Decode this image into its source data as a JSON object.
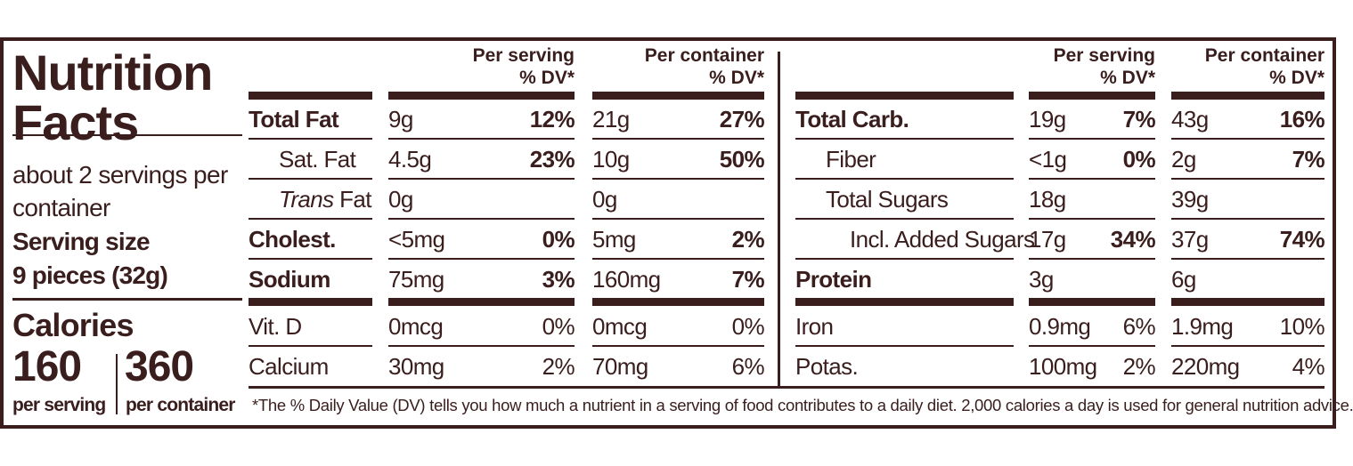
{
  "colors": {
    "ink": "#3a1e1e",
    "background": "#ffffff"
  },
  "left": {
    "title_line1": "Nutrition",
    "title_line2": "Facts",
    "servings_line1": "about 2 servings per",
    "servings_line2": "container",
    "serving_size_label": "Serving size",
    "serving_size_value": "9 pieces (32g)",
    "calories_label": "Calories",
    "calories_per_serving": "160",
    "calories_per_container": "360",
    "per_serving_label": "per serving",
    "per_container_label": "per container"
  },
  "headers": {
    "per_serving": "Per serving",
    "per_container": "Per container",
    "dv": "% DV*"
  },
  "left_table": [
    {
      "label": "Total Fat",
      "bold": true,
      "indent": 0,
      "serving": "9g",
      "serving_dv": "12%",
      "container": "21g",
      "container_dv": "27%",
      "dv_bold": true
    },
    {
      "label": "Sat. Fat",
      "bold": false,
      "indent": 1,
      "serving": "4.5g",
      "serving_dv": "23%",
      "container": "10g",
      "container_dv": "50%",
      "dv_bold": true
    },
    {
      "label": "Trans Fat",
      "italic_prefix": "Trans",
      "bold": false,
      "indent": 1,
      "serving": "0g",
      "serving_dv": "",
      "container": "0g",
      "container_dv": "",
      "dv_bold": true
    },
    {
      "label": "Cholest.",
      "bold": true,
      "indent": 0,
      "serving": "<5mg",
      "serving_dv": "0%",
      "container": "5mg",
      "container_dv": "2%",
      "dv_bold": true
    },
    {
      "label": "Sodium",
      "bold": true,
      "indent": 0,
      "serving": "75mg",
      "serving_dv": "3%",
      "container": "160mg",
      "container_dv": "7%",
      "dv_bold": true
    },
    {
      "label": "Vit. D",
      "bold": false,
      "indent": 0,
      "serving": "0mcg",
      "serving_dv": "0%",
      "container": "0mcg",
      "container_dv": "0%",
      "dv_bold": false
    },
    {
      "label": "Calcium",
      "bold": false,
      "indent": 0,
      "serving": "30mg",
      "serving_dv": "2%",
      "container": "70mg",
      "container_dv": "6%",
      "dv_bold": false
    }
  ],
  "right_table": [
    {
      "label": "Total Carb.",
      "bold": true,
      "indent": 0,
      "serving": "19g",
      "serving_dv": "7%",
      "container": "43g",
      "container_dv": "16%",
      "dv_bold": true
    },
    {
      "label": "Fiber",
      "bold": false,
      "indent": 1,
      "serving": "<1g",
      "serving_dv": "0%",
      "container": "2g",
      "container_dv": "7%",
      "dv_bold": true
    },
    {
      "label": "Total Sugars",
      "bold": false,
      "indent": 1,
      "serving": "18g",
      "serving_dv": "",
      "container": "39g",
      "container_dv": "",
      "dv_bold": true
    },
    {
      "label": "Incl. Added Sugars",
      "bold": false,
      "indent": 2,
      "serving": "17g",
      "serving_dv": "34%",
      "container": "37g",
      "container_dv": "74%",
      "dv_bold": true
    },
    {
      "label": "Protein",
      "bold": true,
      "indent": 0,
      "serving": "3g",
      "serving_dv": "",
      "container": "6g",
      "container_dv": "",
      "dv_bold": true
    },
    {
      "label": "Iron",
      "bold": false,
      "indent": 0,
      "serving": "0.9mg",
      "serving_dv": "6%",
      "container": "1.9mg",
      "container_dv": "10%",
      "dv_bold": false
    },
    {
      "label": "Potas.",
      "bold": false,
      "indent": 0,
      "serving": "100mg",
      "serving_dv": "2%",
      "container": "220mg",
      "container_dv": "4%",
      "dv_bold": false
    }
  ],
  "footnote": "*The % Daily Value (DV) tells you how much a nutrient in a serving of food contributes to a daily diet. 2,000 calories a day is used for general nutrition advice."
}
